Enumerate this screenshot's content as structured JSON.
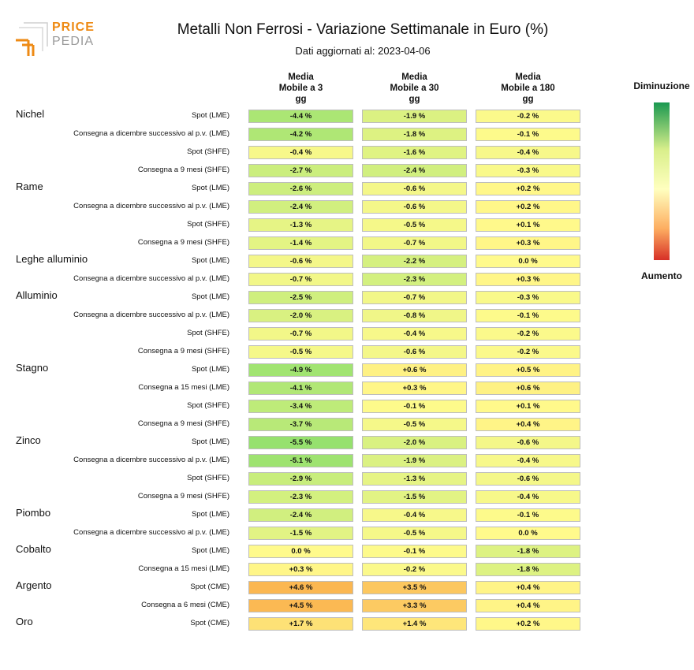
{
  "logo": {
    "line1": "PRICE",
    "line2": "PEDIA"
  },
  "chart_data": {
    "type": "heatmap",
    "title": "Metalli Non Ferrosi - Variazione Settimanale in Euro (%)",
    "subtitle": "Dati aggiornati al: 2023-04-06",
    "columns": [
      [
        "Media",
        "Mobile a 3",
        "gg"
      ],
      [
        "Media",
        "Mobile a 30",
        "gg"
      ],
      [
        "Media",
        "Mobile a 180",
        "gg"
      ]
    ],
    "legend": {
      "top": "Diminuzione",
      "bottom": "Aumento",
      "colors": [
        "#1a9850",
        "#d9ef8b",
        "#ffffbf",
        "#fdae61",
        "#d73027"
      ]
    },
    "rows": [
      {
        "group": "Nichel",
        "label": "Spot (LME)",
        "values": [
          "-4.4 %",
          "-1.9 %",
          "-0.2 %"
        ]
      },
      {
        "group": "",
        "label": "Consegna a dicembre successivo al p.v. (LME)",
        "values": [
          "-4.2 %",
          "-1.8 %",
          "-0.1 %"
        ]
      },
      {
        "group": "",
        "label": "Spot (SHFE)",
        "values": [
          "-0.4 %",
          "-1.6 %",
          "-0.4 %"
        ]
      },
      {
        "group": "",
        "label": "Consegna a 9 mesi (SHFE)",
        "values": [
          "-2.7 %",
          "-2.4 %",
          "-0.3 %"
        ]
      },
      {
        "group": "Rame",
        "label": "Spot (LME)",
        "values": [
          "-2.6 %",
          "-0.6 %",
          "+0.2 %"
        ]
      },
      {
        "group": "",
        "label": "Consegna a dicembre successivo al p.v. (LME)",
        "values": [
          "-2.4 %",
          "-0.6 %",
          "+0.2 %"
        ]
      },
      {
        "group": "",
        "label": "Spot (SHFE)",
        "values": [
          "-1.3 %",
          "-0.5 %",
          "+0.1 %"
        ]
      },
      {
        "group": "",
        "label": "Consegna a 9 mesi (SHFE)",
        "values": [
          "-1.4 %",
          "-0.7 %",
          "+0.3 %"
        ]
      },
      {
        "group": "Leghe alluminio",
        "label": "Spot (LME)",
        "values": [
          "-0.6 %",
          "-2.2 %",
          "0.0 %"
        ]
      },
      {
        "group": "",
        "label": "Consegna a dicembre successivo al p.v. (LME)",
        "values": [
          "-0.7 %",
          "-2.3 %",
          "+0.3 %"
        ]
      },
      {
        "group": "Alluminio",
        "label": "Spot (LME)",
        "values": [
          "-2.5 %",
          "-0.7 %",
          "-0.3 %"
        ]
      },
      {
        "group": "",
        "label": "Consegna a dicembre successivo al p.v. (LME)",
        "values": [
          "-2.0 %",
          "-0.8 %",
          "-0.1 %"
        ]
      },
      {
        "group": "",
        "label": "Spot (SHFE)",
        "values": [
          "-0.7 %",
          "-0.4 %",
          "-0.2 %"
        ]
      },
      {
        "group": "",
        "label": "Consegna a 9 mesi (SHFE)",
        "values": [
          "-0.5 %",
          "-0.6 %",
          "-0.2 %"
        ]
      },
      {
        "group": "Stagno",
        "label": "Spot (LME)",
        "values": [
          "-4.9 %",
          "+0.6 %",
          "+0.5 %"
        ]
      },
      {
        "group": "",
        "label": "Consegna a 15 mesi (LME)",
        "values": [
          "-4.1 %",
          "+0.3 %",
          "+0.6 %"
        ]
      },
      {
        "group": "",
        "label": "Spot (SHFE)",
        "values": [
          "-3.4 %",
          "-0.1 %",
          "+0.1 %"
        ]
      },
      {
        "group": "",
        "label": "Consegna a 9 mesi (SHFE)",
        "values": [
          "-3.7 %",
          "-0.5 %",
          "+0.4 %"
        ]
      },
      {
        "group": "Zinco",
        "label": "Spot (LME)",
        "values": [
          "-5.5 %",
          "-2.0 %",
          "-0.6 %"
        ]
      },
      {
        "group": "",
        "label": "Consegna a dicembre successivo al p.v. (LME)",
        "values": [
          "-5.1 %",
          "-1.9 %",
          "-0.4 %"
        ]
      },
      {
        "group": "",
        "label": "Spot (SHFE)",
        "values": [
          "-2.9 %",
          "-1.3 %",
          "-0.6 %"
        ]
      },
      {
        "group": "",
        "label": "Consegna a 9 mesi (SHFE)",
        "values": [
          "-2.3 %",
          "-1.5 %",
          "-0.4 %"
        ]
      },
      {
        "group": "Piombo",
        "label": "Spot (LME)",
        "values": [
          "-2.4 %",
          "-0.4 %",
          "-0.1 %"
        ]
      },
      {
        "group": "",
        "label": "Consegna a dicembre successivo al p.v. (LME)",
        "values": [
          "-1.5 %",
          "-0.5 %",
          "0.0 %"
        ]
      },
      {
        "group": "Cobalto",
        "label": "Spot (LME)",
        "values": [
          "0.0 %",
          "-0.1 %",
          "-1.8 %"
        ]
      },
      {
        "group": "",
        "label": "Consegna a 15 mesi (LME)",
        "values": [
          "+0.3 %",
          "-0.2 %",
          "-1.8 %"
        ]
      },
      {
        "group": "Argento",
        "label": "Spot (CME)",
        "values": [
          "+4.6 %",
          "+3.5 %",
          "+0.4 %"
        ]
      },
      {
        "group": "",
        "label": "Consegna a 6 mesi (CME)",
        "values": [
          "+4.5 %",
          "+3.3 %",
          "+0.4 %"
        ]
      },
      {
        "group": "Oro",
        "label": "Spot (CME)",
        "values": [
          "+1.7 %",
          "+1.4 %",
          "+0.2 %"
        ]
      }
    ]
  }
}
